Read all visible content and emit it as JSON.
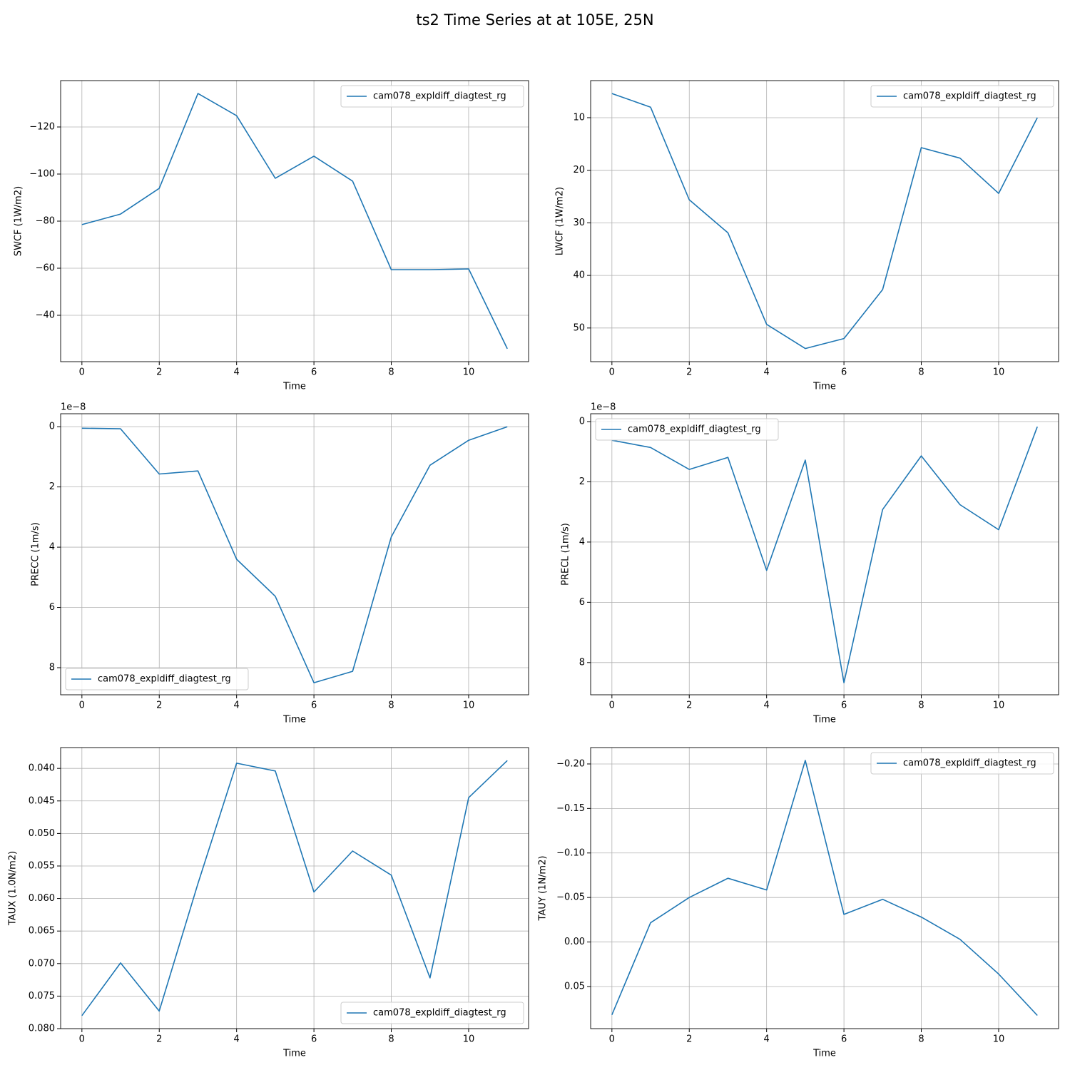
{
  "title": "ts2 Time Series at at 105E, 25N",
  "chart_data": [
    {
      "type": "line",
      "xlabel": "Time",
      "ylabel": "SWCF (1W/m2)",
      "x": [
        0,
        1,
        2,
        3,
        4,
        5,
        6,
        7,
        8,
        9,
        10,
        11
      ],
      "series": [
        {
          "name": "cam078_expldiff_diagtest_rg",
          "color": "#1f77b4",
          "values": [
            -78.5,
            -83.0,
            -93.9,
            -134.2,
            -124.8,
            -98.2,
            -107.6,
            -97.0,
            -59.4,
            -59.4,
            -59.7,
            -25.8
          ]
        }
      ],
      "xlim": [
        -0.55,
        11.55
      ],
      "xticks": [
        0,
        2,
        4,
        6,
        8,
        10
      ],
      "ylim": [
        -20.3,
        -139.7
      ],
      "yticks": [
        {
          "value": -120,
          "label": "−120"
        },
        {
          "value": -100,
          "label": "−100"
        },
        {
          "value": -80,
          "label": "−80"
        },
        {
          "value": -60,
          "label": "−60"
        },
        {
          "value": -40,
          "label": "−40"
        }
      ],
      "grid": true,
      "legend": "upper right"
    },
    {
      "type": "line",
      "xlabel": "Time",
      "ylabel": "LWCF (1W/m2)",
      "x": [
        0,
        1,
        2,
        3,
        4,
        5,
        6,
        7,
        8,
        9,
        10,
        11
      ],
      "series": [
        {
          "name": "cam078_expldiff_diagtest_rg",
          "color": "#1f77b4",
          "values": [
            5.4,
            8.0,
            25.6,
            31.9,
            49.3,
            53.9,
            52.0,
            42.7,
            15.7,
            17.7,
            24.4,
            10.0
          ]
        }
      ],
      "xlim": [
        -0.55,
        11.55
      ],
      "xticks": [
        0,
        2,
        4,
        6,
        8,
        10
      ],
      "ylim": [
        56.4,
        2.95
      ],
      "yticks": [
        10,
        20,
        30,
        40,
        50
      ],
      "grid": true,
      "legend": "upper right"
    },
    {
      "type": "line",
      "xlabel": "Time",
      "ylabel": "PRECC (1m/s)",
      "offset_label": "1e−8",
      "x": [
        0,
        1,
        2,
        3,
        4,
        5,
        6,
        7,
        8,
        9,
        10,
        11
      ],
      "series": [
        {
          "name": "cam078_expldiff_diagtest_rg",
          "color": "#1f77b4",
          "values": [
            0.05,
            0.07,
            1.57,
            1.47,
            4.4,
            5.63,
            8.5,
            8.12,
            3.66,
            1.28,
            0.45,
            0
          ]
        }
      ],
      "xlim": [
        -0.55,
        11.55
      ],
      "xticks": [
        0,
        2,
        4,
        6,
        8,
        10
      ],
      "ylim": [
        8.9,
        -0.43
      ],
      "yticks": [
        0,
        2,
        4,
        6,
        8
      ],
      "grid": true,
      "legend": "lower left"
    },
    {
      "type": "line",
      "xlabel": "Time",
      "ylabel": "PRECL (1m/s)",
      "offset_label": "1e−8",
      "x": [
        0,
        1,
        2,
        3,
        4,
        5,
        6,
        7,
        8,
        9,
        10,
        11
      ],
      "series": [
        {
          "name": "cam078_expldiff_diagtest_rg",
          "color": "#1f77b4",
          "values": [
            0.62,
            0.86,
            1.59,
            1.19,
            4.94,
            1.28,
            8.67,
            2.92,
            1.14,
            2.76,
            3.59,
            0.17
          ]
        }
      ],
      "xlim": [
        -0.55,
        11.55
      ],
      "xticks": [
        0,
        2,
        4,
        6,
        8,
        10
      ],
      "ylim": [
        9.07,
        -0.26
      ],
      "yticks": [
        0,
        2,
        4,
        6,
        8
      ],
      "grid": true,
      "legend": "upper left"
    },
    {
      "type": "line",
      "xlabel": "Time",
      "ylabel": "TAUX (1.0N/m2)",
      "x": [
        0,
        1,
        2,
        3,
        4,
        5,
        6,
        7,
        8,
        9,
        10,
        11
      ],
      "series": [
        {
          "name": "cam078_expldiff_diagtest_rg",
          "color": "#1f77b4",
          "values": [
            0.078,
            0.0699,
            0.0773,
            0.0577,
            0.0392,
            0.0404,
            0.059,
            0.0527,
            0.0564,
            0.0722,
            0.0445,
            0.0388
          ]
        }
      ],
      "xlim": [
        -0.55,
        11.55
      ],
      "xticks": [
        0,
        2,
        4,
        6,
        8,
        10
      ],
      "ylim": [
        0.08,
        0.0368
      ],
      "yticks": [
        {
          "value": 0.04,
          "label": "0.040"
        },
        {
          "value": 0.045,
          "label": "0.045"
        },
        {
          "value": 0.05,
          "label": "0.050"
        },
        {
          "value": 0.055,
          "label": "0.055"
        },
        {
          "value": 0.06,
          "label": "0.060"
        },
        {
          "value": 0.065,
          "label": "0.065"
        },
        {
          "value": 0.07,
          "label": "0.070"
        },
        {
          "value": 0.075,
          "label": "0.075"
        },
        {
          "value": 0.08,
          "label": "0.080"
        }
      ],
      "grid": true,
      "legend": "lower right"
    },
    {
      "type": "line",
      "xlabel": "Time",
      "ylabel": "TAUY (1N/m2)",
      "x": [
        0,
        1,
        2,
        3,
        4,
        5,
        6,
        7,
        8,
        9,
        10,
        11
      ],
      "series": [
        {
          "name": "cam078_expldiff_diagtest_rg",
          "color": "#1f77b4",
          "values": [
            0.0818,
            -0.0216,
            -0.05,
            -0.0716,
            -0.0585,
            -0.204,
            -0.031,
            -0.048,
            -0.028,
            -0.003,
            0.036,
            0.0825
          ]
        }
      ],
      "xlim": [
        -0.55,
        11.55
      ],
      "xticks": [
        0,
        2,
        4,
        6,
        8,
        10
      ],
      "ylim": [
        0.0973,
        -0.2184
      ],
      "yticks": [
        {
          "value": -0.2,
          "label": "−0.20"
        },
        {
          "value": -0.15,
          "label": "−0.15"
        },
        {
          "value": -0.1,
          "label": "−0.10"
        },
        {
          "value": -0.05,
          "label": "−0.05"
        },
        {
          "value": 0,
          "label": "0.00"
        },
        {
          "value": 0.05,
          "label": "0.05"
        }
      ],
      "grid": true,
      "legend": "upper right"
    }
  ]
}
